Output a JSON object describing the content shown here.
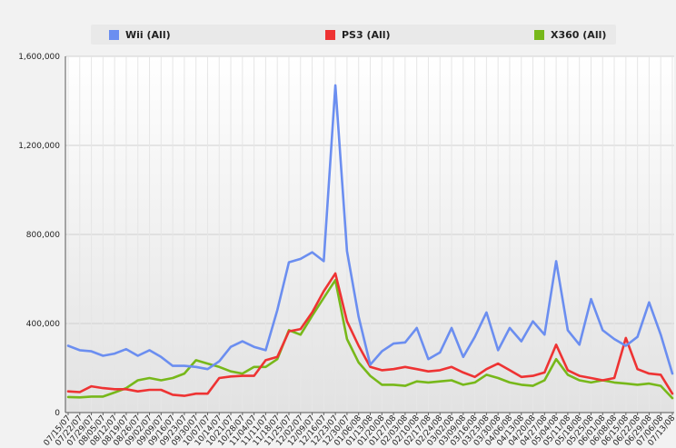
{
  "chart_data": {
    "type": "line",
    "title": "",
    "xlabel": "",
    "ylabel": "",
    "ylim": [
      0,
      1600000
    ],
    "yticks": [
      0,
      400000,
      800000,
      1200000,
      1600000
    ],
    "ytick_labels": [
      "0",
      "400,000",
      "800,000",
      "1,200,000",
      "1,600,000"
    ],
    "grid": true,
    "legend_position": "top",
    "categories": [
      "07/15/07",
      "07/22/07",
      "07/29/07",
      "08/05/07",
      "08/12/07",
      "08/19/07",
      "08/26/07",
      "09/02/07",
      "09/09/07",
      "09/16/07",
      "09/23/07",
      "09/30/07",
      "10/07/07",
      "10/14/07",
      "10/21/07",
      "10/28/07",
      "11/04/07",
      "11/11/07",
      "11/18/07",
      "11/25/07",
      "12/02/07",
      "12/09/07",
      "12/16/07",
      "12/23/07",
      "12/30/07",
      "01/06/08",
      "01/13/08",
      "01/20/08",
      "01/27/08",
      "02/03/08",
      "02/10/08",
      "02/17/08",
      "02/24/08",
      "03/02/08",
      "03/09/08",
      "03/16/08",
      "03/23/08",
      "03/30/08",
      "04/06/08",
      "04/13/08",
      "04/20/08",
      "04/27/08",
      "05/04/08",
      "05/11/08",
      "05/18/08",
      "05/25/08",
      "06/01/08",
      "06/08/08",
      "06/15/08",
      "06/22/08",
      "06/29/08",
      "07/06/08",
      "07/13/08"
    ],
    "series": [
      {
        "name": "Wii (All)",
        "color": "#6b8ef0",
        "values": [
          300000,
          280000,
          275000,
          255000,
          265000,
          285000,
          255000,
          280000,
          250000,
          210000,
          210000,
          205000,
          195000,
          230000,
          295000,
          320000,
          295000,
          280000,
          460000,
          675000,
          690000,
          720000,
          680000,
          1470000,
          725000,
          430000,
          215000,
          275000,
          310000,
          315000,
          380000,
          240000,
          270000,
          380000,
          250000,
          340000,
          450000,
          280000,
          380000,
          320000,
          410000,
          350000,
          680000,
          370000,
          305000,
          510000,
          370000,
          330000,
          300000,
          340000,
          495000,
          350000,
          175000
        ]
      },
      {
        "name": "PS3 (All)",
        "color": "#ee3333",
        "values": [
          95000,
          92000,
          118000,
          110000,
          105000,
          105000,
          95000,
          102000,
          102000,
          80000,
          75000,
          85000,
          85000,
          155000,
          162000,
          165000,
          165000,
          235000,
          250000,
          365000,
          375000,
          450000,
          545000,
          625000,
          410000,
          300000,
          205000,
          190000,
          195000,
          205000,
          195000,
          185000,
          190000,
          205000,
          180000,
          160000,
          195000,
          220000,
          190000,
          160000,
          165000,
          180000,
          305000,
          190000,
          165000,
          155000,
          145000,
          155000,
          335000,
          195000,
          175000,
          170000,
          85000
        ]
      },
      {
        "name": "X360 (All)",
        "color": "#77b81a",
        "values": [
          70000,
          68000,
          72000,
          72000,
          90000,
          110000,
          145000,
          155000,
          145000,
          155000,
          175000,
          235000,
          220000,
          205000,
          185000,
          175000,
          205000,
          205000,
          240000,
          370000,
          350000,
          435000,
          515000,
          595000,
          330000,
          225000,
          165000,
          125000,
          125000,
          120000,
          140000,
          135000,
          140000,
          145000,
          125000,
          135000,
          170000,
          155000,
          135000,
          125000,
          120000,
          145000,
          240000,
          170000,
          145000,
          135000,
          145000,
          135000,
          130000,
          125000,
          130000,
          120000,
          65000
        ]
      }
    ]
  }
}
